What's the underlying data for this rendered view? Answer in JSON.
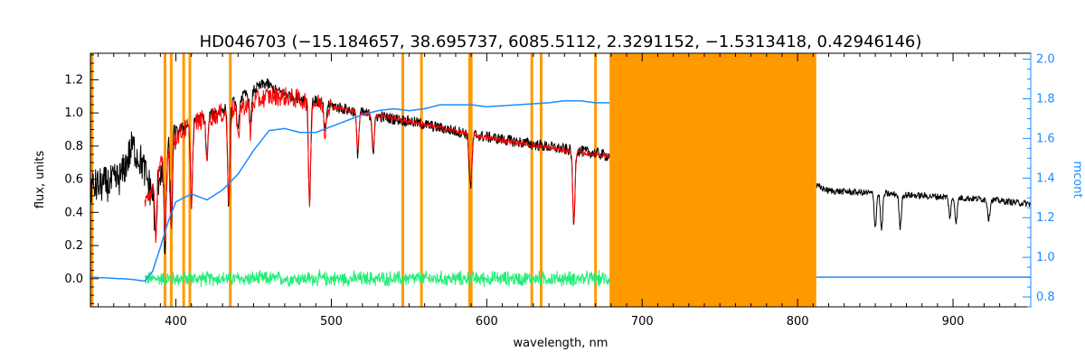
{
  "chart_data": {
    "type": "line",
    "title": "HD046703    (−15.184657, 38.695737, 6085.5112, 2.3291152, −1.5313418, 0.42946146)",
    "xlabel": "wavelength, nm",
    "ylabel": "flux, units",
    "ylabel_right": "mcont",
    "xlim": [
      345,
      950
    ],
    "ylim": [
      -0.17,
      1.36
    ],
    "ylim_right": [
      0.75,
      2.03
    ],
    "x_ticks": [
      400,
      500,
      600,
      700,
      800,
      900
    ],
    "y_ticks": [
      0.0,
      0.2,
      0.4,
      0.6,
      0.8,
      1.0,
      1.2
    ],
    "y_ticks_right": [
      0.8,
      1.0,
      1.2,
      1.4,
      1.6,
      1.8,
      2.0
    ],
    "grid": false,
    "masked_band": {
      "x_start": 679,
      "x_end": 812
    },
    "vertical_lines_nm": [
      346,
      393,
      397,
      405,
      409,
      435,
      546,
      558,
      589,
      590,
      629,
      635,
      670
    ],
    "colors": {
      "observed": "#000000",
      "model": "#ff0000",
      "continuum": "#1a8cff",
      "residual": "#22ee77",
      "mask": "#ff9900",
      "axis_right": "#1a8cff"
    },
    "series": [
      {
        "role": "observed",
        "axis": "left",
        "x": [
          345,
          360,
          365,
          372,
          378,
          385,
          390,
          395,
          400,
          410,
          420,
          430,
          440,
          450,
          458,
          465,
          475,
          490,
          510,
          530,
          550,
          570,
          590,
          610,
          630,
          650,
          668,
          679
        ],
        "y": [
          0.55,
          0.58,
          0.62,
          0.8,
          0.7,
          0.5,
          0.65,
          0.78,
          0.88,
          0.95,
          0.98,
          1.02,
          1.08,
          1.14,
          1.18,
          1.13,
          1.1,
          1.07,
          1.02,
          0.98,
          0.95,
          0.91,
          0.87,
          0.84,
          0.81,
          0.78,
          0.76,
          0.74
        ]
      },
      {
        "role": "observed-nir",
        "axis": "left",
        "x": [
          812,
          820,
          840,
          860,
          880,
          900,
          920,
          940,
          950
        ],
        "y": [
          0.56,
          0.53,
          0.52,
          0.51,
          0.5,
          0.49,
          0.48,
          0.46,
          0.45
        ]
      },
      {
        "role": "model",
        "axis": "left",
        "x": [
          380,
          385,
          390,
          395,
          400,
          410,
          420,
          430,
          440,
          450,
          460,
          470,
          480,
          500,
          520,
          540,
          560,
          580,
          600,
          620,
          640,
          660,
          679
        ],
        "y": [
          0.45,
          0.55,
          0.68,
          0.78,
          0.86,
          0.93,
          0.97,
          1.0,
          1.03,
          1.07,
          1.1,
          1.1,
          1.08,
          1.04,
          1.0,
          0.97,
          0.93,
          0.89,
          0.85,
          0.82,
          0.79,
          0.76,
          0.74
        ]
      },
      {
        "role": "continuum",
        "axis": "right",
        "x": [
          345,
          370,
          380,
          385,
          390,
          395,
          400,
          410,
          420,
          430,
          440,
          450,
          460,
          470,
          480,
          490,
          500,
          510,
          520,
          530,
          540,
          550,
          560,
          570,
          580,
          590,
          600,
          620,
          640,
          650,
          660,
          670,
          679
        ],
        "y": [
          0.9,
          0.89,
          0.88,
          0.93,
          1.05,
          1.18,
          1.28,
          1.32,
          1.29,
          1.34,
          1.42,
          1.54,
          1.64,
          1.65,
          1.63,
          1.63,
          1.66,
          1.69,
          1.72,
          1.74,
          1.75,
          1.74,
          1.75,
          1.77,
          1.77,
          1.77,
          1.76,
          1.77,
          1.78,
          1.79,
          1.79,
          1.78,
          1.78
        ]
      },
      {
        "role": "continuum-nir",
        "axis": "right",
        "x": [
          812,
          850,
          900,
          950
        ],
        "y": [
          0.9,
          0.9,
          0.9,
          0.9
        ]
      },
      {
        "role": "residual",
        "axis": "left",
        "x": [
          380,
          679
        ],
        "y": [
          0.0,
          0.0
        ],
        "noise_amplitude": 0.04
      }
    ],
    "absorption_lines": [
      {
        "x": 387,
        "depth": 0.35
      },
      {
        "x": 393,
        "depth": 0.55
      },
      {
        "x": 397,
        "depth": 0.5
      },
      {
        "x": 410,
        "depth": 0.5
      },
      {
        "x": 420,
        "depth": 0.25
      },
      {
        "x": 434,
        "depth": 0.6
      },
      {
        "x": 440,
        "depth": 0.2
      },
      {
        "x": 448,
        "depth": 0.2
      },
      {
        "x": 486,
        "depth": 0.62
      },
      {
        "x": 496,
        "depth": 0.18
      },
      {
        "x": 517,
        "depth": 0.25
      },
      {
        "x": 527,
        "depth": 0.22
      },
      {
        "x": 589,
        "depth": 0.18
      },
      {
        "x": 590,
        "depth": 0.22
      },
      {
        "x": 656,
        "depth": 0.45
      },
      {
        "x": 850,
        "depth": 0.2
      },
      {
        "x": 854,
        "depth": 0.22
      },
      {
        "x": 866,
        "depth": 0.2
      },
      {
        "x": 898,
        "depth": 0.12
      },
      {
        "x": 902,
        "depth": 0.15
      },
      {
        "x": 923,
        "depth": 0.12
      }
    ]
  }
}
